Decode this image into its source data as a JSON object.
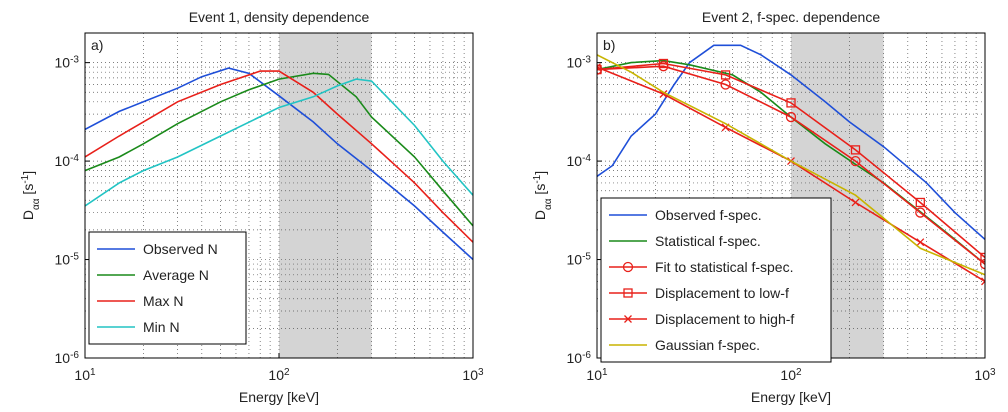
{
  "chart_data": [
    {
      "type": "line",
      "title": "Event 1, density dependence",
      "panel_label": "a)",
      "xlabel": "Energy [keV]",
      "ylabel": "D_{αα} [s^{-1}]",
      "xlog": true,
      "ylog": true,
      "grid": true,
      "legend": "lower left",
      "xlim": [
        10,
        1000
      ],
      "ylim": [
        1e-06,
        0.002
      ],
      "xticks": [
        {
          "value": 10,
          "label": "10^{1}"
        },
        {
          "value": 100,
          "label": "10^{2}"
        },
        {
          "value": 1000,
          "label": "10^{3}"
        }
      ],
      "yticks": [
        {
          "value": 1e-06,
          "label": "10^{-6}"
        },
        {
          "value": 1e-05,
          "label": "10^{-5}"
        },
        {
          "value": 0.0001,
          "label": "10^{-4}"
        },
        {
          "value": 0.001,
          "label": "10^{-3}"
        }
      ],
      "shade": [
        100,
        300
      ],
      "shade_color": "#d4d4d4",
      "series": [
        {
          "name": "Observed N",
          "color": "#1f4fd8",
          "x": [
            10,
            15,
            20,
            30,
            40,
            55,
            70,
            100,
            150,
            200,
            300,
            500,
            700,
            1000
          ],
          "values": [
            0.00021,
            0.00032,
            0.0004,
            0.00055,
            0.00072,
            0.00088,
            0.00078,
            0.00046,
            0.00025,
            0.00015,
            8e-05,
            3.5e-05,
            1.9e-05,
            1e-05
          ]
        },
        {
          "name": "Average N",
          "color": "#1a8a1a",
          "x": [
            10,
            15,
            20,
            30,
            50,
            70,
            100,
            150,
            180,
            250,
            300,
            500,
            700,
            1000
          ],
          "values": [
            8e-05,
            0.00011,
            0.00015,
            0.00024,
            0.0004,
            0.00053,
            0.00068,
            0.00078,
            0.00076,
            0.00045,
            0.00028,
            0.00011,
            5e-05,
            2.2e-05
          ]
        },
        {
          "name": "Max N",
          "color": "#e8201a",
          "x": [
            10,
            15,
            20,
            30,
            50,
            80,
            100,
            150,
            200,
            300,
            500,
            700,
            1000
          ],
          "values": [
            0.00011,
            0.00018,
            0.00025,
            0.0004,
            0.0006,
            0.00082,
            0.00082,
            0.0005,
            0.0003,
            0.00015,
            6e-05,
            3e-05,
            1.5e-05
          ]
        },
        {
          "name": "Min N",
          "color": "#22c4c4",
          "x": [
            10,
            15,
            20,
            30,
            50,
            100,
            150,
            200,
            250,
            300,
            500,
            700,
            1000
          ],
          "values": [
            3.5e-05,
            6e-05,
            8e-05,
            0.00011,
            0.00018,
            0.00035,
            0.00045,
            0.00058,
            0.00068,
            0.00065,
            0.00023,
            0.0001,
            4.5e-05
          ]
        }
      ]
    },
    {
      "type": "line",
      "title": "Event 2, f-spec. dependence",
      "panel_label": "b)",
      "xlabel": "Energy [keV]",
      "ylabel": "D_{αα} [s^{-1}]",
      "xlog": true,
      "ylog": true,
      "grid": true,
      "legend": "lower left",
      "xlim": [
        10,
        1000
      ],
      "ylim": [
        1e-06,
        0.002
      ],
      "xticks": [
        {
          "value": 10,
          "label": "10^{1}"
        },
        {
          "value": 100,
          "label": "10^{2}"
        },
        {
          "value": 1000,
          "label": "10^{3}"
        }
      ],
      "yticks": [
        {
          "value": 1e-06,
          "label": "10^{-6}"
        },
        {
          "value": 1e-05,
          "label": "10^{-5}"
        },
        {
          "value": 0.0001,
          "label": "10^{-4}"
        },
        {
          "value": 0.001,
          "label": "10^{-3}"
        }
      ],
      "shade": [
        100,
        300
      ],
      "shade_color": "#d4d4d4",
      "series": [
        {
          "name": "Observed f-spec.",
          "color": "#1f4fd8",
          "x": [
            10,
            12,
            15,
            20,
            25,
            30,
            40,
            55,
            70,
            100,
            150,
            200,
            300,
            500,
            700,
            1000
          ],
          "values": [
            7e-05,
            9e-05,
            0.00018,
            0.0003,
            0.0006,
            0.001,
            0.0015,
            0.0015,
            0.0012,
            0.00075,
            0.0004,
            0.00025,
            0.00014,
            6e-05,
            3e-05,
            1.6e-05
          ]
        },
        {
          "name": "Statistical f-spec.",
          "color": "#1a8a1a",
          "x": [
            10,
            15,
            22,
            30,
            50,
            70,
            100,
            150,
            220,
            300,
            470,
            700,
            1000
          ],
          "values": [
            0.00085,
            0.001,
            0.00105,
            0.00095,
            0.00075,
            0.0005,
            0.00028,
            0.00015,
            9e-05,
            6e-05,
            3e-05,
            1.6e-05,
            9e-06
          ]
        },
        {
          "name": "Fit to statistical f-spec.",
          "color": "#e8201a",
          "marker": "o",
          "x": [
            10,
            22,
            46,
            100,
            215,
            464,
            1000
          ],
          "values": [
            0.00085,
            0.00092,
            0.0006,
            0.00028,
            0.0001,
            3e-05,
            9e-06
          ]
        },
        {
          "name": "Displacement to low-f",
          "color": "#e8201a",
          "marker": "s",
          "x": [
            10,
            22,
            46,
            100,
            215,
            464,
            1000
          ],
          "values": [
            0.00085,
            0.00098,
            0.00075,
            0.00039,
            0.00013,
            3.8e-05,
            1.05e-05
          ]
        },
        {
          "name": "Displacement to high-f",
          "color": "#e8201a",
          "marker": "x",
          "x": [
            10,
            22,
            46,
            100,
            215,
            464,
            1000
          ],
          "values": [
            0.0009,
            0.00048,
            0.00022,
            0.0001,
            3.8e-05,
            1.5e-05,
            6e-06
          ]
        },
        {
          "name": "Gaussian f-spec.",
          "color": "#c8b400",
          "x": [
            10,
            15,
            22,
            46,
            100,
            215,
            464,
            1000
          ],
          "values": [
            0.0012,
            0.0008,
            0.0005,
            0.00024,
            0.0001,
            4.5e-05,
            1.3e-05,
            7e-06
          ]
        }
      ]
    }
  ]
}
